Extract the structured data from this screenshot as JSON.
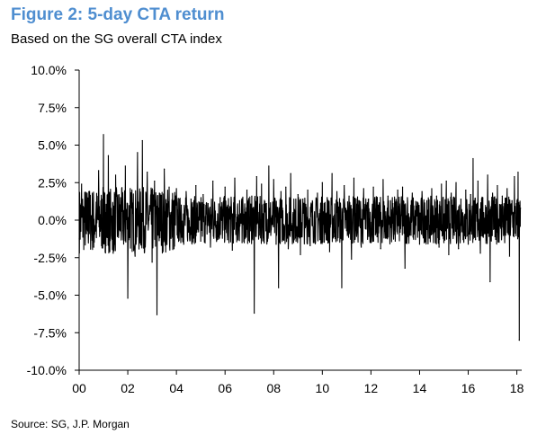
{
  "title": "Figure 2: 5-day CTA return",
  "subtitle": "Based on the SG overall CTA index",
  "source": "Source: SG, J.P. Morgan",
  "chart_data": {
    "type": "line",
    "title": "Figure 2: 5-day CTA return",
    "subtitle": "Based on the SG overall CTA index",
    "xlabel": "",
    "ylabel": "",
    "x_range": [
      2000,
      2018.2
    ],
    "ylim": [
      -10,
      10
    ],
    "y_ticks": [
      10,
      7.5,
      5,
      2.5,
      0,
      -2.5,
      -5,
      -7.5,
      -10
    ],
    "y_tick_labels": [
      "10.0%",
      "7.5%",
      "5.0%",
      "2.5%",
      "0.0%",
      "-2.5%",
      "-5.0%",
      "-7.5%",
      "-10.0%"
    ],
    "x_ticks": [
      2000,
      2002,
      2004,
      2006,
      2008,
      2010,
      2012,
      2014,
      2016,
      2018
    ],
    "x_tick_labels": [
      "00",
      "02",
      "04",
      "06",
      "08",
      "10",
      "12",
      "14",
      "16",
      "18"
    ],
    "grid": false,
    "series_color": "#000000",
    "series": [
      {
        "values_note_unit": "percent",
        "points": [
          [
            2000.0,
            -1.2
          ],
          [
            2000.1,
            2.4
          ],
          [
            2000.2,
            0.8
          ],
          [
            2000.3,
            -0.9
          ],
          [
            2000.4,
            1.9
          ],
          [
            2000.5,
            0.3
          ],
          [
            2000.6,
            -1.8
          ],
          [
            2000.7,
            1.2
          ],
          [
            2000.8,
            3.3
          ],
          [
            2000.9,
            -0.5
          ],
          [
            2001.0,
            5.7
          ],
          [
            2001.05,
            1.0
          ],
          [
            2001.1,
            -1.7
          ],
          [
            2001.2,
            4.3
          ],
          [
            2001.3,
            0.2
          ],
          [
            2001.4,
            -2.2
          ],
          [
            2001.5,
            3.0
          ],
          [
            2001.6,
            -1.0
          ],
          [
            2001.7,
            1.5
          ],
          [
            2001.8,
            -0.7
          ],
          [
            2001.9,
            3.6
          ],
          [
            2002.0,
            -5.2
          ],
          [
            2002.1,
            2.1
          ],
          [
            2002.2,
            0.7
          ],
          [
            2002.3,
            -2.4
          ],
          [
            2002.4,
            4.5
          ],
          [
            2002.5,
            1.3
          ],
          [
            2002.6,
            5.3
          ],
          [
            2002.7,
            -1.5
          ],
          [
            2002.8,
            3.2
          ],
          [
            2002.9,
            0.4
          ],
          [
            2003.0,
            -2.8
          ],
          [
            2003.1,
            2.6
          ],
          [
            2003.2,
            -6.3
          ],
          [
            2003.3,
            1.8
          ],
          [
            2003.4,
            -0.9
          ],
          [
            2003.5,
            3.4
          ],
          [
            2003.6,
            -1.3
          ],
          [
            2003.7,
            2.2
          ],
          [
            2003.8,
            0.1
          ],
          [
            2003.9,
            -1.9
          ],
          [
            2004.0,
            2.1
          ],
          [
            2004.1,
            -0.6
          ],
          [
            2004.2,
            1.0
          ],
          [
            2004.3,
            -1.6
          ],
          [
            2004.4,
            1.9
          ],
          [
            2004.5,
            -0.8
          ],
          [
            2004.6,
            1.4
          ],
          [
            2004.7,
            -1.2
          ],
          [
            2004.8,
            2.3
          ],
          [
            2004.9,
            0.2
          ],
          [
            2005.0,
            -1.4
          ],
          [
            2005.1,
            1.7
          ],
          [
            2005.2,
            -0.3
          ],
          [
            2005.3,
            1.1
          ],
          [
            2005.4,
            -1.8
          ],
          [
            2005.5,
            2.6
          ],
          [
            2005.6,
            0.6
          ],
          [
            2005.7,
            -1.1
          ],
          [
            2005.8,
            1.5
          ],
          [
            2005.9,
            -0.5
          ],
          [
            2006.0,
            2.2
          ],
          [
            2006.1,
            -1.3
          ],
          [
            2006.2,
            0.9
          ],
          [
            2006.3,
            -2.0
          ],
          [
            2006.4,
            2.8
          ],
          [
            2006.5,
            -0.4
          ],
          [
            2006.6,
            1.3
          ],
          [
            2006.7,
            -1.5
          ],
          [
            2006.8,
            0.7
          ],
          [
            2006.9,
            2.0
          ],
          [
            2007.0,
            -0.9
          ],
          [
            2007.1,
            1.6
          ],
          [
            2007.2,
            -6.2
          ],
          [
            2007.3,
            2.9
          ],
          [
            2007.4,
            -0.7
          ],
          [
            2007.5,
            2.4
          ],
          [
            2007.6,
            -1.4
          ],
          [
            2007.7,
            1.1
          ],
          [
            2007.8,
            3.6
          ],
          [
            2007.9,
            -0.6
          ],
          [
            2008.0,
            2.7
          ],
          [
            2008.1,
            -1.6
          ],
          [
            2008.2,
            -4.5
          ],
          [
            2008.3,
            1.9
          ],
          [
            2008.4,
            -0.8
          ],
          [
            2008.5,
            2.2
          ],
          [
            2008.6,
            -1.9
          ],
          [
            2008.7,
            3.1
          ],
          [
            2008.8,
            0.5
          ],
          [
            2008.9,
            -1.2
          ],
          [
            2009.0,
            1.7
          ],
          [
            2009.1,
            -2.3
          ],
          [
            2009.2,
            1.4
          ],
          [
            2009.3,
            -0.5
          ],
          [
            2009.4,
            2.0
          ],
          [
            2009.5,
            -1.7
          ],
          [
            2009.6,
            1.2
          ],
          [
            2009.7,
            -0.9
          ],
          [
            2009.8,
            1.8
          ],
          [
            2009.9,
            -1.3
          ],
          [
            2010.0,
            2.5
          ],
          [
            2010.1,
            -0.8
          ],
          [
            2010.2,
            1.5
          ],
          [
            2010.3,
            -2.1
          ],
          [
            2010.4,
            3.1
          ],
          [
            2010.5,
            -1.1
          ],
          [
            2010.6,
            1.9
          ],
          [
            2010.7,
            0.3
          ],
          [
            2010.8,
            -4.5
          ],
          [
            2010.9,
            2.3
          ],
          [
            2011.0,
            -0.7
          ],
          [
            2011.1,
            1.6
          ],
          [
            2011.2,
            -2.6
          ],
          [
            2011.3,
            2.8
          ],
          [
            2011.4,
            -0.4
          ],
          [
            2011.5,
            1.3
          ],
          [
            2011.6,
            -1.8
          ],
          [
            2011.7,
            2.1
          ],
          [
            2011.8,
            -0.6
          ],
          [
            2011.9,
            1.4
          ],
          [
            2012.0,
            -1.5
          ],
          [
            2012.1,
            2.2
          ],
          [
            2012.2,
            -0.9
          ],
          [
            2012.3,
            1.0
          ],
          [
            2012.4,
            -1.9
          ],
          [
            2012.5,
            2.7
          ],
          [
            2012.6,
            -1.2
          ],
          [
            2012.7,
            1.6
          ],
          [
            2012.8,
            -0.5
          ],
          [
            2012.9,
            1.1
          ],
          [
            2013.0,
            -1.4
          ],
          [
            2013.1,
            2.0
          ],
          [
            2013.2,
            -0.8
          ],
          [
            2013.3,
            2.2
          ],
          [
            2013.4,
            -3.2
          ],
          [
            2013.5,
            1.5
          ],
          [
            2013.6,
            -1.0
          ],
          [
            2013.7,
            1.8
          ],
          [
            2013.8,
            -0.4
          ],
          [
            2013.9,
            1.2
          ],
          [
            2014.0,
            -1.6
          ],
          [
            2014.1,
            1.9
          ],
          [
            2014.2,
            -0.7
          ],
          [
            2014.3,
            1.3
          ],
          [
            2014.4,
            -1.2
          ],
          [
            2014.5,
            2.1
          ],
          [
            2014.6,
            -0.3
          ],
          [
            2014.7,
            1.6
          ],
          [
            2014.8,
            -1.8
          ],
          [
            2014.9,
            2.4
          ],
          [
            2015.0,
            -1.5
          ],
          [
            2015.1,
            2.6
          ],
          [
            2015.2,
            -2.3
          ],
          [
            2015.3,
            1.8
          ],
          [
            2015.4,
            -0.8
          ],
          [
            2015.5,
            2.5
          ],
          [
            2015.6,
            -1.9
          ],
          [
            2015.7,
            1.4
          ],
          [
            2015.8,
            -0.5
          ],
          [
            2015.9,
            2.0
          ],
          [
            2016.0,
            -1.6
          ],
          [
            2016.1,
            1.7
          ],
          [
            2016.2,
            4.1
          ],
          [
            2016.3,
            -1.3
          ],
          [
            2016.4,
            2.6
          ],
          [
            2016.5,
            -2.2
          ],
          [
            2016.6,
            1.5
          ],
          [
            2016.7,
            -0.9
          ],
          [
            2016.8,
            3.0
          ],
          [
            2016.9,
            -4.1
          ],
          [
            2017.0,
            1.8
          ],
          [
            2017.1,
            -1.1
          ],
          [
            2017.2,
            2.3
          ],
          [
            2017.3,
            -0.4
          ],
          [
            2017.4,
            1.6
          ],
          [
            2017.5,
            -1.5
          ],
          [
            2017.6,
            2.1
          ],
          [
            2017.7,
            -2.4
          ],
          [
            2017.8,
            1.3
          ],
          [
            2017.9,
            2.9
          ],
          [
            2018.0,
            -0.3
          ],
          [
            2018.05,
            3.2
          ],
          [
            2018.1,
            -8.0
          ],
          [
            2018.15,
            0.8
          ]
        ]
      }
    ]
  }
}
